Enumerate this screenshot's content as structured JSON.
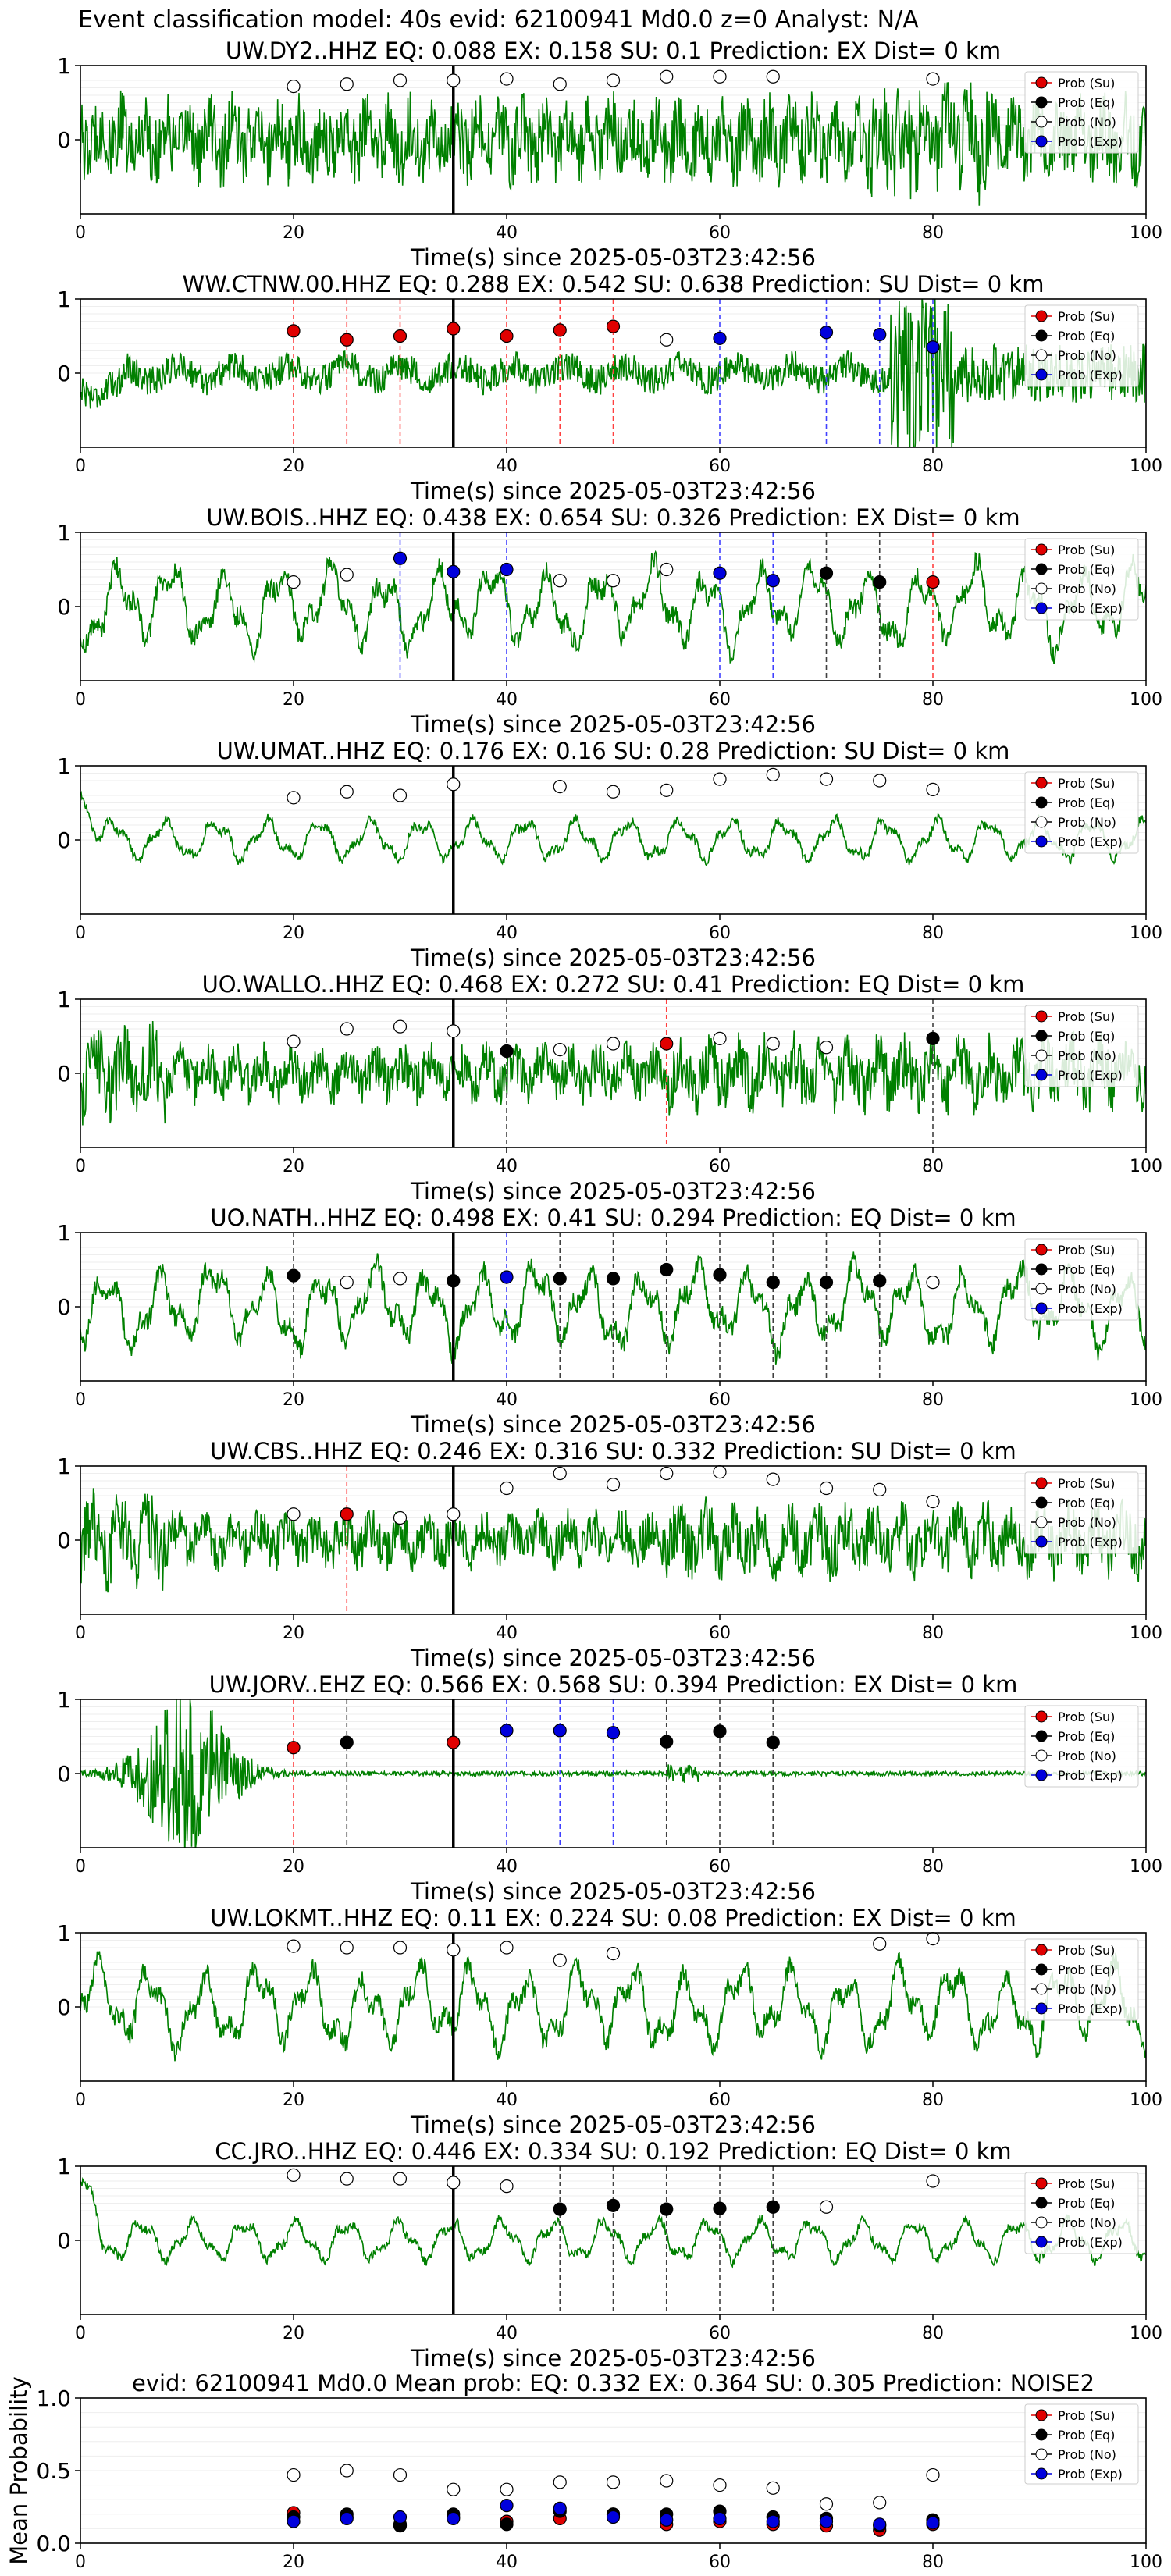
{
  "page_title": "Event classification model: 40s evid: 62100941 Md0.0 z=0 Analyst: N/A",
  "legend_labels": [
    "Prob (Su)",
    "Prob (Eq)",
    "Prob (No)",
    "Prob (Exp)"
  ],
  "colors": {
    "waveform": "#008000",
    "su": "#e00000",
    "eq": "#000000",
    "no": "#ffffff",
    "exp": "#0000dd",
    "su_line": "#ff4040",
    "eq_line": "#404040",
    "exp_line": "#4040ff",
    "pick_line": "#000000"
  },
  "chart_data": [
    {
      "type": "line",
      "title": "UW.DY2..HHZ    EQ: 0.088  EX: 0.158  SU: 0.1   Prediction: EX    Dist= 0 km",
      "xlabel": "Time(s) since 2025-05-03T23:42:56",
      "xlim": [
        0,
        100
      ],
      "ylim": [
        -1,
        1
      ],
      "xticks": [
        "0",
        "20",
        "40",
        "60",
        "80",
        "100"
      ],
      "yticks": [
        "1",
        "0"
      ],
      "pick_time": 35,
      "waveform_style": "broadband",
      "points": [
        {
          "t": 20,
          "p": 0.72,
          "c": "no"
        },
        {
          "t": 25,
          "p": 0.75,
          "c": "no"
        },
        {
          "t": 30,
          "p": 0.8,
          "c": "no"
        },
        {
          "t": 35,
          "p": 0.8,
          "c": "no"
        },
        {
          "t": 40,
          "p": 0.82,
          "c": "no"
        },
        {
          "t": 45,
          "p": 0.75,
          "c": "no"
        },
        {
          "t": 50,
          "p": 0.8,
          "c": "no"
        },
        {
          "t": 55,
          "p": 0.85,
          "c": "no"
        },
        {
          "t": 60,
          "p": 0.85,
          "c": "no"
        },
        {
          "t": 65,
          "p": 0.85,
          "c": "no"
        },
        {
          "t": 80,
          "p": 0.82,
          "c": "no"
        }
      ]
    },
    {
      "type": "line",
      "title": "WW.CTNW.00.HHZ   EQ: 0.288  EX: 0.542  SU: 0.638   Prediction: SU    Dist= 0 km",
      "xlabel": "Time(s) since 2025-05-03T23:42:56",
      "xlim": [
        0,
        100
      ],
      "ylim": [
        -1,
        1
      ],
      "xticks": [
        "0",
        "20",
        "40",
        "60",
        "80",
        "100"
      ],
      "yticks": [
        "1",
        "0"
      ],
      "pick_time": 35,
      "waveform_style": "noisy_burst",
      "points": [
        {
          "t": 20,
          "p": 0.57,
          "c": "su"
        },
        {
          "t": 25,
          "p": 0.45,
          "c": "su"
        },
        {
          "t": 30,
          "p": 0.5,
          "c": "su"
        },
        {
          "t": 35,
          "p": 0.6,
          "c": "su"
        },
        {
          "t": 40,
          "p": 0.5,
          "c": "su"
        },
        {
          "t": 45,
          "p": 0.58,
          "c": "su"
        },
        {
          "t": 50,
          "p": 0.63,
          "c": "su"
        },
        {
          "t": 55,
          "p": 0.45,
          "c": "no"
        },
        {
          "t": 60,
          "p": 0.47,
          "c": "exp"
        },
        {
          "t": 70,
          "p": 0.55,
          "c": "exp"
        },
        {
          "t": 75,
          "p": 0.52,
          "c": "exp"
        },
        {
          "t": 80,
          "p": 0.35,
          "c": "exp"
        }
      ]
    },
    {
      "type": "line",
      "title": "UW.BOIS..HHZ   EQ: 0.438  EX: 0.654  SU: 0.326   Prediction: EX    Dist= 0 km",
      "xlabel": "Time(s) since 2025-05-03T23:42:56",
      "xlim": [
        0,
        100
      ],
      "ylim": [
        -1,
        1
      ],
      "xticks": [
        "0",
        "20",
        "40",
        "60",
        "80",
        "100"
      ],
      "yticks": [
        "1",
        "0"
      ],
      "pick_time": 35,
      "waveform_style": "oscillating",
      "points": [
        {
          "t": 20,
          "p": 0.33,
          "c": "no"
        },
        {
          "t": 25,
          "p": 0.43,
          "c": "no"
        },
        {
          "t": 30,
          "p": 0.65,
          "c": "exp"
        },
        {
          "t": 35,
          "p": 0.47,
          "c": "exp"
        },
        {
          "t": 40,
          "p": 0.5,
          "c": "exp"
        },
        {
          "t": 45,
          "p": 0.35,
          "c": "no"
        },
        {
          "t": 50,
          "p": 0.35,
          "c": "no"
        },
        {
          "t": 55,
          "p": 0.5,
          "c": "no"
        },
        {
          "t": 60,
          "p": 0.45,
          "c": "exp"
        },
        {
          "t": 65,
          "p": 0.35,
          "c": "exp"
        },
        {
          "t": 70,
          "p": 0.45,
          "c": "eq"
        },
        {
          "t": 75,
          "p": 0.33,
          "c": "eq"
        },
        {
          "t": 80,
          "p": 0.33,
          "c": "su"
        }
      ]
    },
    {
      "type": "line",
      "title": "UW.UMAT..HHZ   EQ: 0.176  EX: 0.16  SU: 0.28   Prediction: SU    Dist= 0 km",
      "xlabel": "Time(s) since 2025-05-03T23:42:56",
      "xlim": [
        0,
        100
      ],
      "ylim": [
        -1,
        1
      ],
      "xticks": [
        "0",
        "20",
        "40",
        "60",
        "80",
        "100"
      ],
      "yticks": [
        "1",
        "0"
      ],
      "pick_time": 35,
      "waveform_style": "smooth",
      "points": [
        {
          "t": 20,
          "p": 0.57,
          "c": "no"
        },
        {
          "t": 25,
          "p": 0.65,
          "c": "no"
        },
        {
          "t": 30,
          "p": 0.6,
          "c": "no"
        },
        {
          "t": 35,
          "p": 0.75,
          "c": "no"
        },
        {
          "t": 45,
          "p": 0.72,
          "c": "no"
        },
        {
          "t": 50,
          "p": 0.65,
          "c": "no"
        },
        {
          "t": 55,
          "p": 0.67,
          "c": "no"
        },
        {
          "t": 60,
          "p": 0.82,
          "c": "no"
        },
        {
          "t": 65,
          "p": 0.88,
          "c": "no"
        },
        {
          "t": 70,
          "p": 0.82,
          "c": "no"
        },
        {
          "t": 75,
          "p": 0.8,
          "c": "no"
        },
        {
          "t": 80,
          "p": 0.68,
          "c": "no"
        }
      ]
    },
    {
      "type": "line",
      "title": "UO.WALLO..HHZ   EQ: 0.468  EX: 0.272  SU: 0.41   Prediction: EQ    Dist= 0 km",
      "xlabel": "Time(s) since 2025-05-03T23:42:56",
      "xlim": [
        0,
        100
      ],
      "ylim": [
        -1,
        1
      ],
      "xticks": [
        "0",
        "20",
        "40",
        "60",
        "80",
        "100"
      ],
      "yticks": [
        "1",
        "0"
      ],
      "pick_time": 35,
      "waveform_style": "broadband_mid",
      "points": [
        {
          "t": 20,
          "p": 0.43,
          "c": "no"
        },
        {
          "t": 25,
          "p": 0.6,
          "c": "no"
        },
        {
          "t": 30,
          "p": 0.63,
          "c": "no"
        },
        {
          "t": 35,
          "p": 0.57,
          "c": "no"
        },
        {
          "t": 40,
          "p": 0.3,
          "c": "eq"
        },
        {
          "t": 45,
          "p": 0.32,
          "c": "no"
        },
        {
          "t": 50,
          "p": 0.4,
          "c": "no"
        },
        {
          "t": 55,
          "p": 0.4,
          "c": "su"
        },
        {
          "t": 60,
          "p": 0.47,
          "c": "no"
        },
        {
          "t": 65,
          "p": 0.4,
          "c": "no"
        },
        {
          "t": 70,
          "p": 0.35,
          "c": "no"
        },
        {
          "t": 80,
          "p": 0.47,
          "c": "eq"
        }
      ]
    },
    {
      "type": "line",
      "title": "UO.NATH..HHZ   EQ: 0.498  EX: 0.41  SU: 0.294   Prediction: EQ    Dist= 0 km",
      "xlabel": "Time(s) since 2025-05-03T23:42:56",
      "xlim": [
        0,
        100
      ],
      "ylim": [
        -1,
        1
      ],
      "xticks": [
        "0",
        "20",
        "40",
        "60",
        "80",
        "100"
      ],
      "yticks": [
        "1",
        "0"
      ],
      "pick_time": 35,
      "waveform_style": "oscillating",
      "points": [
        {
          "t": 20,
          "p": 0.42,
          "c": "eq"
        },
        {
          "t": 25,
          "p": 0.33,
          "c": "no"
        },
        {
          "t": 30,
          "p": 0.38,
          "c": "no"
        },
        {
          "t": 35,
          "p": 0.35,
          "c": "eq"
        },
        {
          "t": 40,
          "p": 0.4,
          "c": "exp"
        },
        {
          "t": 45,
          "p": 0.38,
          "c": "eq"
        },
        {
          "t": 50,
          "p": 0.38,
          "c": "eq"
        },
        {
          "t": 55,
          "p": 0.5,
          "c": "eq"
        },
        {
          "t": 60,
          "p": 0.43,
          "c": "eq"
        },
        {
          "t": 65,
          "p": 0.33,
          "c": "eq"
        },
        {
          "t": 70,
          "p": 0.33,
          "c": "eq"
        },
        {
          "t": 75,
          "p": 0.35,
          "c": "eq"
        },
        {
          "t": 80,
          "p": 0.33,
          "c": "no"
        }
      ]
    },
    {
      "type": "line",
      "title": "UW.CBS..HHZ   EQ: 0.246  EX: 0.316  SU: 0.332   Prediction: SU    Dist= 0 km",
      "xlabel": "Time(s) since 2025-05-03T23:42:56",
      "xlim": [
        0,
        100
      ],
      "ylim": [
        -1,
        1
      ],
      "xticks": [
        "0",
        "20",
        "40",
        "60",
        "80",
        "100"
      ],
      "yticks": [
        "1",
        "0"
      ],
      "pick_time": 35,
      "waveform_style": "broadband_mid",
      "points": [
        {
          "t": 20,
          "p": 0.35,
          "c": "no"
        },
        {
          "t": 25,
          "p": 0.35,
          "c": "su"
        },
        {
          "t": 30,
          "p": 0.3,
          "c": "no"
        },
        {
          "t": 35,
          "p": 0.35,
          "c": "no"
        },
        {
          "t": 40,
          "p": 0.7,
          "c": "no"
        },
        {
          "t": 45,
          "p": 0.9,
          "c": "no"
        },
        {
          "t": 50,
          "p": 0.75,
          "c": "no"
        },
        {
          "t": 55,
          "p": 0.9,
          "c": "no"
        },
        {
          "t": 60,
          "p": 0.92,
          "c": "no"
        },
        {
          "t": 65,
          "p": 0.82,
          "c": "no"
        },
        {
          "t": 70,
          "p": 0.7,
          "c": "no"
        },
        {
          "t": 75,
          "p": 0.68,
          "c": "no"
        },
        {
          "t": 80,
          "p": 0.52,
          "c": "no"
        }
      ]
    },
    {
      "type": "line",
      "title": "UW.JORV..EHZ   EQ: 0.566  EX: 0.568  SU: 0.394   Prediction: EX    Dist= 0 km",
      "xlabel": "Time(s) since 2025-05-03T23:42:56",
      "xlim": [
        0,
        100
      ],
      "ylim": [
        -1,
        1
      ],
      "xticks": [
        "0",
        "20",
        "40",
        "60",
        "80",
        "100"
      ],
      "yticks": [
        "1",
        "0"
      ],
      "pick_time": 35,
      "waveform_style": "early_burst",
      "points": [
        {
          "t": 20,
          "p": 0.35,
          "c": "su"
        },
        {
          "t": 25,
          "p": 0.42,
          "c": "eq"
        },
        {
          "t": 35,
          "p": 0.42,
          "c": "su"
        },
        {
          "t": 40,
          "p": 0.58,
          "c": "exp"
        },
        {
          "t": 45,
          "p": 0.58,
          "c": "exp"
        },
        {
          "t": 50,
          "p": 0.55,
          "c": "exp"
        },
        {
          "t": 55,
          "p": 0.43,
          "c": "eq"
        },
        {
          "t": 60,
          "p": 0.57,
          "c": "eq"
        },
        {
          "t": 65,
          "p": 0.42,
          "c": "eq"
        }
      ]
    },
    {
      "type": "line",
      "title": "UW.LOKMT..HHZ   EQ: 0.11  EX: 0.224  SU: 0.08   Prediction: EX    Dist= 0 km",
      "xlabel": "Time(s) since 2025-05-03T23:42:56",
      "xlim": [
        0,
        100
      ],
      "ylim": [
        -1,
        1
      ],
      "xticks": [
        "0",
        "20",
        "40",
        "60",
        "80",
        "100"
      ],
      "yticks": [
        "1",
        "0"
      ],
      "pick_time": 35,
      "waveform_style": "oscillating",
      "points": [
        {
          "t": 20,
          "p": 0.82,
          "c": "no"
        },
        {
          "t": 25,
          "p": 0.8,
          "c": "no"
        },
        {
          "t": 30,
          "p": 0.8,
          "c": "no"
        },
        {
          "t": 35,
          "p": 0.77,
          "c": "no"
        },
        {
          "t": 40,
          "p": 0.8,
          "c": "no"
        },
        {
          "t": 45,
          "p": 0.63,
          "c": "no"
        },
        {
          "t": 50,
          "p": 0.72,
          "c": "no"
        },
        {
          "t": 75,
          "p": 0.85,
          "c": "no"
        },
        {
          "t": 80,
          "p": 0.92,
          "c": "no"
        }
      ]
    },
    {
      "type": "line",
      "title": "CC.JRO..HHZ   EQ: 0.446  EX: 0.334  SU: 0.192   Prediction: EQ    Dist= 0 km",
      "xlabel": "Time(s) since 2025-05-03T23:42:56",
      "xlim": [
        0,
        100
      ],
      "ylim": [
        -1,
        1
      ],
      "xticks": [
        "0",
        "20",
        "40",
        "60",
        "80",
        "100"
      ],
      "yticks": [
        "1",
        "0"
      ],
      "pick_time": 35,
      "waveform_style": "smooth",
      "points": [
        {
          "t": 20,
          "p": 0.88,
          "c": "no"
        },
        {
          "t": 25,
          "p": 0.83,
          "c": "no"
        },
        {
          "t": 30,
          "p": 0.83,
          "c": "no"
        },
        {
          "t": 35,
          "p": 0.78,
          "c": "no"
        },
        {
          "t": 40,
          "p": 0.73,
          "c": "no"
        },
        {
          "t": 45,
          "p": 0.42,
          "c": "eq"
        },
        {
          "t": 50,
          "p": 0.47,
          "c": "eq"
        },
        {
          "t": 55,
          "p": 0.42,
          "c": "eq"
        },
        {
          "t": 60,
          "p": 0.43,
          "c": "eq"
        },
        {
          "t": 65,
          "p": 0.45,
          "c": "eq"
        },
        {
          "t": 70,
          "p": 0.45,
          "c": "no"
        },
        {
          "t": 80,
          "p": 0.8,
          "c": "no"
        }
      ]
    },
    {
      "type": "scatter",
      "title": "evid: 62100941  Md0.0   Mean prob:   EQ: 0.332  EX: 0.364  SU: 0.305   Prediction: NOISE2",
      "ylabel": "Mean Probability",
      "xlim": [
        0,
        100
      ],
      "ylim": [
        0,
        1
      ],
      "xticks": [
        "0",
        "20",
        "40",
        "60",
        "80",
        "100"
      ],
      "yticks": [
        "1.0",
        "0.5",
        "0.0"
      ],
      "x": [
        20,
        25,
        30,
        35,
        40,
        45,
        50,
        55,
        60,
        65,
        70,
        75,
        80
      ],
      "series": [
        {
          "name": "Prob (Su)",
          "c": "su",
          "values": [
            0.21,
            0.18,
            0.13,
            0.18,
            0.15,
            0.17,
            0.2,
            0.13,
            0.15,
            0.13,
            0.12,
            0.09,
            0.13
          ]
        },
        {
          "name": "Prob (Eq)",
          "c": "eq",
          "values": [
            0.18,
            0.2,
            0.12,
            0.2,
            0.13,
            0.22,
            0.2,
            0.2,
            0.22,
            0.18,
            0.17,
            0.12,
            0.16
          ]
        },
        {
          "name": "Prob (No)",
          "c": "no",
          "values": [
            0.47,
            0.5,
            0.47,
            0.37,
            0.37,
            0.42,
            0.42,
            0.43,
            0.4,
            0.38,
            0.27,
            0.28,
            0.47
          ]
        },
        {
          "name": "Prob (Exp)",
          "c": "exp",
          "values": [
            0.15,
            0.17,
            0.18,
            0.17,
            0.26,
            0.24,
            0.18,
            0.16,
            0.17,
            0.15,
            0.15,
            0.13,
            0.14
          ]
        }
      ]
    }
  ]
}
